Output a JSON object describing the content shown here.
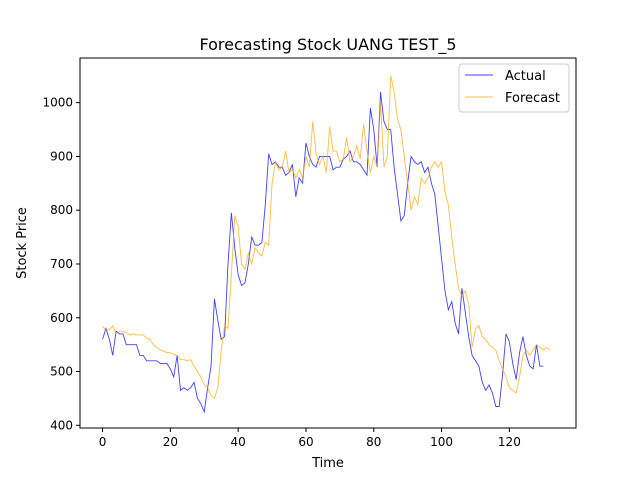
{
  "chart_data": {
    "type": "line",
    "title": "Forecasting Stock UANG TEST_5",
    "xlabel": "Time",
    "ylabel": "Stock Price",
    "xlim": [
      -6.65,
      139.65
    ],
    "ylim": [
      395,
      1083
    ],
    "xticks": [
      0,
      20,
      40,
      60,
      80,
      100,
      120
    ],
    "yticks": [
      400,
      500,
      600,
      700,
      800,
      900,
      1000
    ],
    "grid": false,
    "legend_position": "top-right",
    "series": [
      {
        "name": "Actual",
        "color": "#0000ff",
        "values": [
          560,
          580,
          560,
          530,
          575,
          570,
          570,
          550,
          550,
          550,
          550,
          530,
          530,
          520,
          520,
          520,
          520,
          515,
          515,
          515,
          505,
          490,
          530,
          465,
          470,
          465,
          470,
          480,
          450,
          440,
          425,
          470,
          510,
          635,
          595,
          560,
          565,
          700,
          795,
          730,
          680,
          660,
          665,
          700,
          750,
          735,
          735,
          740,
          810,
          905,
          885,
          890,
          880,
          880,
          865,
          870,
          885,
          825,
          860,
          850,
          925,
          900,
          885,
          880,
          900,
          900,
          900,
          900,
          875,
          880,
          880,
          895,
          900,
          910,
          890,
          890,
          885,
          875,
          865,
          990,
          950,
          880,
          1020,
          965,
          950,
          950,
          880,
          830,
          780,
          790,
          850,
          900,
          890,
          885,
          890,
          870,
          880,
          850,
          830,
          770,
          710,
          650,
          615,
          630,
          590,
          570,
          655,
          610,
          565,
          530,
          520,
          510,
          480,
          465,
          475,
          460,
          435,
          435,
          495,
          570,
          555,
          515,
          485,
          535,
          565,
          530,
          510,
          505,
          550,
          510,
          510
        ]
      },
      {
        "name": "Forecast",
        "color": "#ffa500",
        "values": [
          585,
          575,
          578,
          585,
          570,
          575,
          575,
          572,
          568,
          570,
          568,
          568,
          568,
          562,
          560,
          550,
          545,
          540,
          538,
          535,
          535,
          532,
          530,
          522,
          522,
          520,
          522,
          510,
          500,
          490,
          475,
          470,
          455,
          450,
          470,
          540,
          585,
          580,
          680,
          790,
          770,
          700,
          690,
          720,
          700,
          730,
          720,
          715,
          740,
          735,
          850,
          890,
          875,
          880,
          910,
          870,
          875,
          860,
          875,
          860,
          900,
          880,
          965,
          905,
          885,
          900,
          870,
          955,
          910,
          910,
          890,
          895,
          935,
          890,
          900,
          920,
          895,
          960,
          910,
          870,
          900,
          880,
          1000,
          880,
          900,
          1050,
          1020,
          970,
          950,
          900,
          850,
          800,
          825,
          810,
          860,
          850,
          860,
          880,
          890,
          880,
          890,
          835,
          810,
          750,
          700,
          655,
          640,
          650,
          625,
          545,
          580,
          585,
          565,
          560,
          550,
          545,
          540,
          520,
          505,
          490,
          470,
          465,
          460,
          490,
          530,
          540,
          530,
          540,
          550,
          545,
          540,
          545,
          540
        ]
      }
    ]
  }
}
